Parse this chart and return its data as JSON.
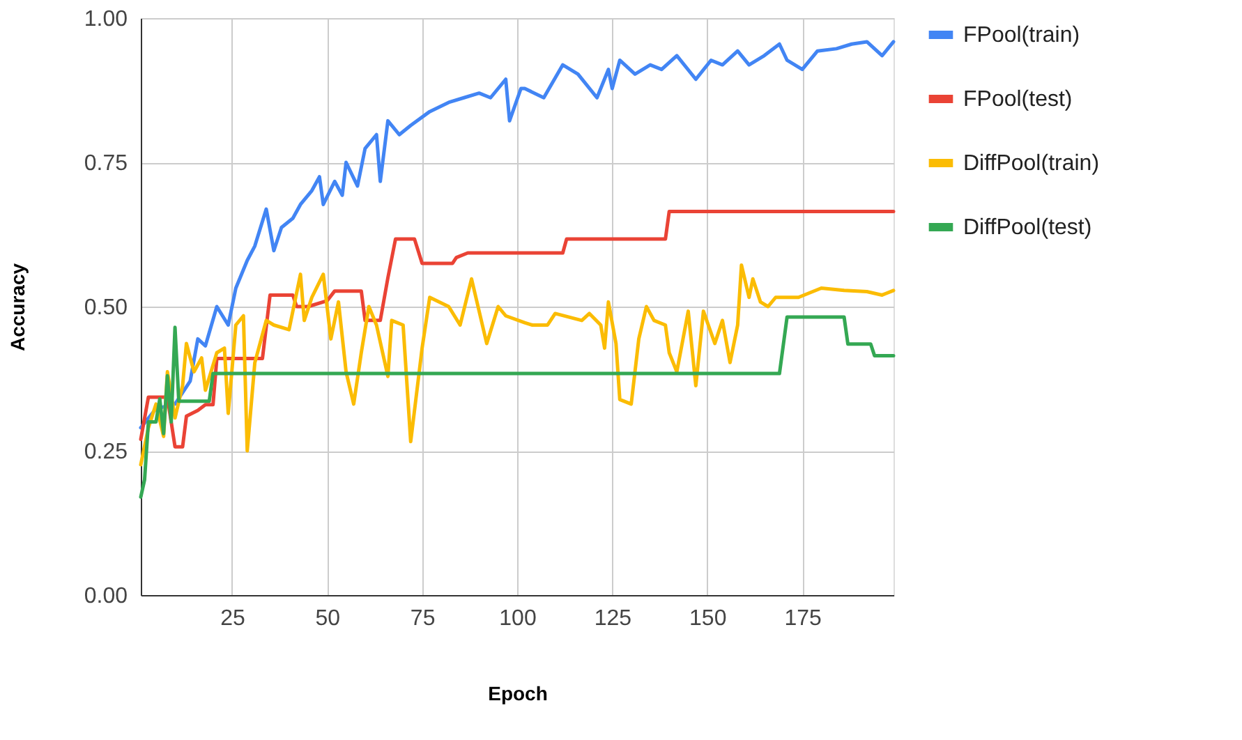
{
  "chart_data": {
    "type": "line",
    "xlabel": "Epoch",
    "ylabel": "Accuracy",
    "xlim": [
      1,
      199
    ],
    "xticks": [
      25,
      50,
      75,
      100,
      125,
      150,
      175
    ],
    "ylim": [
      0,
      1
    ],
    "yticks": [
      {
        "value": 0,
        "label": "0.00"
      },
      {
        "value": 0.25,
        "label": "0.25"
      },
      {
        "value": 0.5,
        "label": "0.50"
      },
      {
        "value": 0.75,
        "label": "0.75"
      },
      {
        "value": 1,
        "label": "1.00"
      }
    ],
    "grid": true,
    "legend": "right",
    "series": [
      {
        "name": "FPool(train)",
        "color": "#4285f4",
        "x": [
          1,
          5,
          10,
          14,
          16,
          18,
          21,
          24,
          26,
          29,
          31,
          34,
          36,
          38,
          41,
          43,
          46,
          48,
          49,
          52,
          54,
          55,
          58,
          60,
          63,
          64,
          66,
          69,
          72,
          77,
          82,
          86,
          90,
          93,
          97,
          98,
          101,
          102,
          107,
          112,
          116,
          121,
          124,
          125,
          127,
          131,
          135,
          138,
          142,
          147,
          151,
          154,
          158,
          161,
          165,
          169,
          171,
          175,
          179,
          184,
          188,
          192,
          196,
          199
        ],
        "values": [
          0.29,
          0.323,
          0.331,
          0.371,
          0.444,
          0.432,
          0.5,
          0.468,
          0.532,
          0.58,
          0.605,
          0.669,
          0.597,
          0.637,
          0.653,
          0.677,
          0.701,
          0.725,
          0.677,
          0.717,
          0.693,
          0.75,
          0.709,
          0.774,
          0.798,
          0.717,
          0.822,
          0.798,
          0.814,
          0.838,
          0.854,
          0.862,
          0.87,
          0.862,
          0.894,
          0.822,
          0.878,
          0.878,
          0.862,
          0.919,
          0.903,
          0.862,
          0.911,
          0.878,
          0.927,
          0.903,
          0.919,
          0.911,
          0.935,
          0.894,
          0.927,
          0.919,
          0.943,
          0.919,
          0.935,
          0.955,
          0.927,
          0.911,
          0.943,
          0.947,
          0.955,
          0.959,
          0.935,
          0.959
        ]
      },
      {
        "name": "FPool(test)",
        "color": "#ea4335",
        "x": [
          1,
          3,
          8,
          10,
          12,
          13,
          16,
          18,
          20,
          21,
          33,
          35,
          41,
          42,
          45,
          50,
          52,
          59,
          60,
          64,
          66,
          68,
          73,
          75,
          83,
          84,
          87,
          112,
          113,
          139,
          140,
          199
        ],
        "values": [
          0.27,
          0.343,
          0.343,
          0.257,
          0.257,
          0.31,
          0.32,
          0.33,
          0.33,
          0.41,
          0.41,
          0.52,
          0.52,
          0.5,
          0.5,
          0.51,
          0.527,
          0.527,
          0.476,
          0.476,
          0.55,
          0.617,
          0.617,
          0.575,
          0.575,
          0.585,
          0.593,
          0.593,
          0.617,
          0.617,
          0.665,
          0.665
        ]
      },
      {
        "name": "DiffPool(train)",
        "color": "#fbbc04",
        "x": [
          1,
          3,
          5,
          7,
          8,
          10,
          12,
          13,
          15,
          17,
          18,
          21,
          23,
          24,
          26,
          28,
          29,
          31,
          34,
          36,
          40,
          43,
          44,
          46,
          49,
          51,
          53,
          55,
          57,
          59,
          61,
          63,
          66,
          67,
          70,
          72,
          75,
          77,
          82,
          85,
          88,
          92,
          95,
          97,
          102,
          104,
          108,
          110,
          117,
          119,
          122,
          123,
          124,
          126,
          127,
          130,
          132,
          134,
          136,
          139,
          140,
          142,
          145,
          147,
          149,
          152,
          154,
          156,
          158,
          159,
          161,
          162,
          164,
          166,
          168,
          174,
          180,
          186,
          192,
          196,
          199
        ],
        "values": [
          0.226,
          0.29,
          0.331,
          0.275,
          0.387,
          0.307,
          0.363,
          0.436,
          0.387,
          0.411,
          0.355,
          0.42,
          0.428,
          0.315,
          0.468,
          0.484,
          0.25,
          0.403,
          0.476,
          0.468,
          0.46,
          0.556,
          0.476,
          0.516,
          0.556,
          0.444,
          0.508,
          0.387,
          0.331,
          0.42,
          0.5,
          0.468,
          0.379,
          0.476,
          0.468,
          0.266,
          0.428,
          0.516,
          0.5,
          0.468,
          0.548,
          0.436,
          0.5,
          0.484,
          0.472,
          0.468,
          0.468,
          0.488,
          0.476,
          0.488,
          0.468,
          0.428,
          0.508,
          0.436,
          0.339,
          0.331,
          0.444,
          0.5,
          0.476,
          0.468,
          0.42,
          0.387,
          0.492,
          0.363,
          0.492,
          0.436,
          0.476,
          0.403,
          0.468,
          0.572,
          0.516,
          0.548,
          0.508,
          0.5,
          0.516,
          0.516,
          0.532,
          0.528,
          0.526,
          0.52,
          0.528
        ]
      },
      {
        "name": "DiffPool(test)",
        "color": "#34a853",
        "x": [
          1,
          2,
          3,
          5,
          6,
          7,
          8,
          9,
          10,
          11,
          19,
          20,
          169,
          171,
          186,
          187,
          193,
          194,
          199
        ],
        "values": [
          0.17,
          0.2,
          0.3,
          0.3,
          0.34,
          0.28,
          0.38,
          0.3,
          0.464,
          0.336,
          0.336,
          0.384,
          0.384,
          0.482,
          0.482,
          0.435,
          0.435,
          0.415,
          0.415
        ]
      }
    ]
  }
}
